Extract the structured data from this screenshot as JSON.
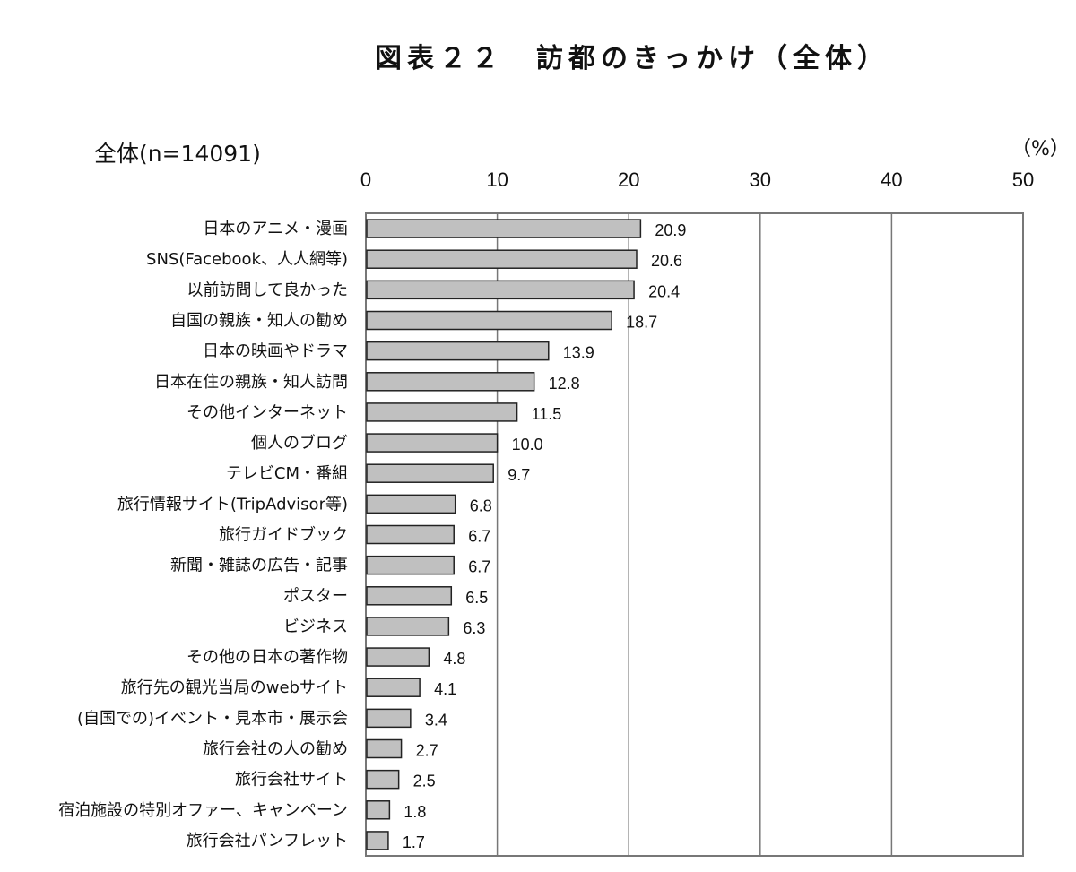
{
  "chart_data": {
    "type": "bar",
    "orientation": "horizontal",
    "title": "図表２２　訪都のきっかけ（全体）",
    "subtitle": "全体(n=14091)",
    "unit_label": "（%）",
    "xlim": [
      0,
      50
    ],
    "xticks": [
      "0",
      "10",
      "20",
      "30",
      "40",
      "50"
    ],
    "grid": true,
    "categories": [
      "日本のアニメ・漫画",
      "SNS(Facebook、人人網等)",
      "以前訪問して良かった",
      "自国の親族・知人の勧め",
      "日本の映画やドラマ",
      "日本在住の親族・知人訪問",
      "その他インターネット",
      "個人のブログ",
      "テレビCM・番組",
      "旅行情報サイト(TripAdvisor等)",
      "旅行ガイドブック",
      "新聞・雑誌の広告・記事",
      "ポスター",
      "ビジネス",
      "その他の日本の著作物",
      "旅行先の観光当局のwebサイト",
      "(自国での)イベント・見本市・展示会",
      "旅行会社の人の勧め",
      "旅行会社サイト",
      "宿泊施設の特別オファー、キャンペーン",
      "旅行会社パンフレット"
    ],
    "values": [
      20.9,
      20.6,
      20.4,
      18.7,
      13.9,
      12.8,
      11.5,
      10.0,
      9.7,
      6.8,
      6.7,
      6.7,
      6.5,
      6.3,
      4.8,
      4.1,
      3.4,
      2.7,
      2.5,
      1.8,
      1.7
    ],
    "value_labels": [
      "20.9",
      "20.6",
      "20.4",
      "18.7",
      "13.9",
      "12.8",
      "11.5",
      "10.0",
      "9.7",
      "6.8",
      "6.7",
      "6.7",
      "6.5",
      "6.3",
      "4.8",
      "4.1",
      "3.4",
      "2.7",
      "2.5",
      "1.8",
      "1.7"
    ],
    "colors": {
      "bar": "#c0c0c0",
      "bar_border": "#222222",
      "grid": "#777777"
    }
  }
}
